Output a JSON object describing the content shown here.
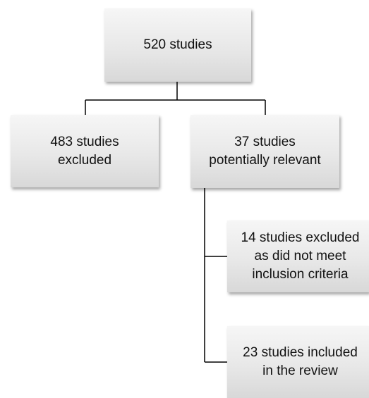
{
  "boxes": {
    "total": {
      "lines": [
        "520 studies"
      ]
    },
    "excluded": {
      "lines": [
        "483 studies",
        "excluded"
      ]
    },
    "relevant": {
      "lines": [
        "37 studies",
        "potentially relevant"
      ]
    },
    "excluded_criteria": {
      "lines": [
        "14 studies excluded",
        "as did not meet",
        "inclusion criteria"
      ]
    },
    "included": {
      "lines": [
        "23 studies included",
        "in the review"
      ]
    }
  }
}
